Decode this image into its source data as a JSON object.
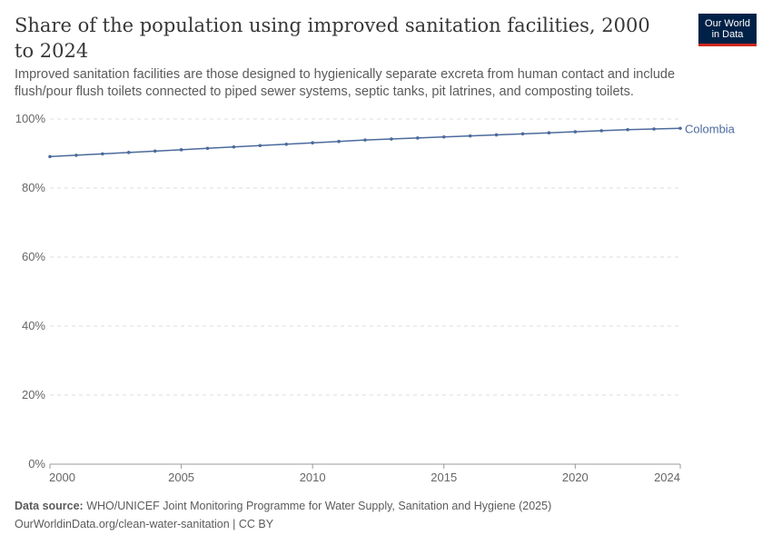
{
  "title": "Share of the population using improved sanitation facilities, 2000 to 2024",
  "subtitle": "Improved sanitation facilities are those designed to hygienically separate excreta from human contact and include flush/pour flush toilets connected to piped sewer systems, septic tanks, pit latrines, and composting toilets.",
  "logo": {
    "line1": "Our World",
    "line2": "in Data"
  },
  "footer": {
    "source_label": "Data source:",
    "source": "WHO/UNICEF Joint Monitoring Programme for Water Supply, Sanitation and Hygiene (2025)",
    "url": "OurWorldinData.org/clean-water-sanitation | CC BY"
  },
  "chart_data": {
    "type": "line",
    "xlim": [
      2000,
      2024
    ],
    "ylim": [
      0,
      100
    ],
    "x_ticks": [
      2000,
      2005,
      2010,
      2015,
      2020,
      2024
    ],
    "y_ticks": [
      0,
      20,
      40,
      60,
      80,
      100
    ],
    "y_tick_labels": [
      "0%",
      "20%",
      "40%",
      "60%",
      "80%",
      "100%"
    ],
    "grid": "horizontal dashed",
    "series": [
      {
        "name": "Colombia",
        "color": "#4c6a9c",
        "x": [
          2000,
          2001,
          2002,
          2003,
          2004,
          2005,
          2006,
          2007,
          2008,
          2009,
          2010,
          2011,
          2012,
          2013,
          2014,
          2015,
          2016,
          2017,
          2018,
          2019,
          2020,
          2021,
          2022,
          2023,
          2024
        ],
        "y": [
          89.1,
          89.5,
          89.9,
          90.3,
          90.7,
          91.1,
          91.5,
          91.9,
          92.3,
          92.7,
          93.1,
          93.5,
          93.9,
          94.2,
          94.5,
          94.8,
          95.1,
          95.4,
          95.7,
          96.0,
          96.3,
          96.6,
          96.9,
          97.1,
          97.3
        ]
      }
    ]
  }
}
